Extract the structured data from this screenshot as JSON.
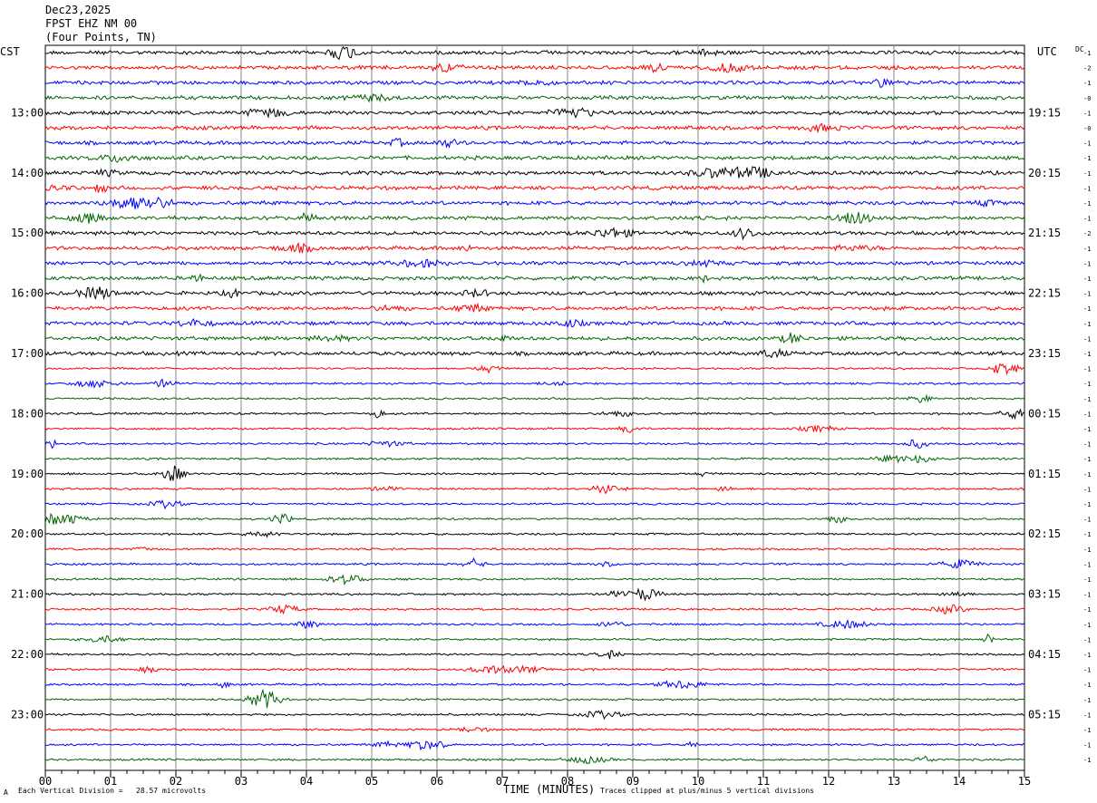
{
  "header": {
    "date": "Dec23,2025",
    "station": "FPST EHZ NM 00",
    "location": "(Four Points, TN)"
  },
  "left_tz": "CST",
  "right_tz": "UTC",
  "dc_label": "DC",
  "footer": {
    "left": "Each Vertical Division =   28.57 microvolts",
    "corner": "A",
    "center": "TIME (MINUTES)",
    "right": "Traces clipped at plus/minus 5 vertical divisions"
  },
  "chart_data": {
    "type": "line",
    "title": "",
    "xlabel": "TIME (MINUTES)",
    "ylabel": "",
    "xlim": [
      0,
      15
    ],
    "x_ticks": [
      "00",
      "01",
      "02",
      "03",
      "04",
      "05",
      "06",
      "07",
      "08",
      "09",
      "10",
      "11",
      "12",
      "13",
      "14",
      "15"
    ],
    "left_hour_labels": [
      "13:00",
      "14:00",
      "15:00",
      "16:00",
      "17:00",
      "18:00",
      "19:00",
      "20:00",
      "21:00",
      "22:00",
      "23:00"
    ],
    "right_hour_labels": [
      "19:15",
      "20:15",
      "21:15",
      "22:15",
      "23:15",
      "00:15",
      "01:15",
      "02:15",
      "03:15",
      "04:15",
      "05:15"
    ],
    "trace_colors": [
      "#000000",
      "#ff0000",
      "#0000ff",
      "#006400"
    ],
    "dc_offsets": [
      "-1",
      "-2",
      "-1",
      "-0",
      "-1",
      "-0",
      "-1",
      "-1",
      "-1",
      "-1",
      "-1",
      "-1",
      "-2",
      "-1",
      "-1",
      "-1",
      "-1",
      "-1",
      "-1",
      "-1",
      "-1",
      "-1",
      "-1",
      "-1",
      "-1",
      "-1",
      "-1",
      "-1",
      "-1",
      "-1",
      "-1",
      "-1",
      "-1",
      "-1",
      "-1",
      "-1",
      "-1",
      "-1",
      "-1",
      "-1",
      "-1",
      "-1",
      "-1",
      "-1",
      "-1",
      "-1",
      "-1",
      "-1"
    ],
    "trace_count": 48
  }
}
